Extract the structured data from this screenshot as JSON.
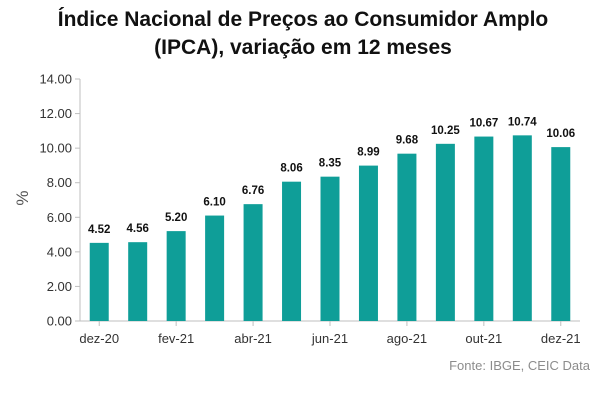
{
  "colors": {
    "bar": "#0f9e98",
    "axis": "#bfbfbf",
    "text": "#333333"
  },
  "chart_data": {
    "type": "bar",
    "title_line1": "Índice Nacional de Preços ao Consumidor Amplo",
    "title_line2": "(IPCA), variação em 12 meses",
    "ylabel": "%",
    "ylim": [
      0,
      14
    ],
    "yticks": [
      "0.00",
      "2.00",
      "4.00",
      "6.00",
      "8.00",
      "10.00",
      "12.00",
      "14.00"
    ],
    "grid": false,
    "categories": [
      "dez-20",
      "jan-21",
      "fev-21",
      "mar-21",
      "abr-21",
      "mai-21",
      "jun-21",
      "jul-21",
      "ago-21",
      "set-21",
      "out-21",
      "nov-21",
      "dez-21"
    ],
    "visible_xticks": [
      "dez-20",
      "fev-21",
      "abr-21",
      "jun-21",
      "ago-21",
      "out-21",
      "dez-21"
    ],
    "values": [
      4.52,
      4.56,
      5.2,
      6.1,
      6.76,
      8.06,
      8.35,
      8.99,
      9.68,
      10.25,
      10.67,
      10.74,
      10.06
    ],
    "data_labels": [
      "4.52",
      "4.56",
      "5.20",
      "6.10",
      "6.76",
      "8.06",
      "8.35",
      "8.99",
      "9.68",
      "10.25",
      "10.67",
      "10.74",
      "10.06"
    ]
  },
  "source": "Fonte: IBGE, CEIC Data"
}
